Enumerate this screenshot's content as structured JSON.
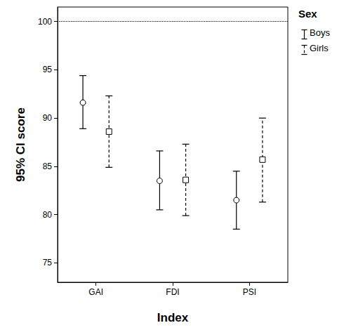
{
  "chart_data": {
    "type": "errorbar",
    "x_label": "Index",
    "y_label": "95% CI score",
    "categories": [
      "GAI",
      "FDI",
      "PSI"
    ],
    "legend_title": "Sex",
    "legend": "upper right",
    "reference_line": 100,
    "ylim": [
      73,
      101.5
    ],
    "yticks": [
      75,
      80,
      85,
      90,
      95,
      100
    ],
    "grid": false,
    "series": [
      {
        "name": "Boys",
        "color": "#000000",
        "marker": "circle",
        "line_style": "solid",
        "values": [
          91.6,
          83.5,
          81.5
        ],
        "lower": [
          88.9,
          80.5,
          78.5
        ],
        "upper": [
          94.4,
          86.6,
          84.5
        ]
      },
      {
        "name": "Girls",
        "color": "#000000",
        "marker": "square",
        "line_style": "dashed",
        "values": [
          88.6,
          83.6,
          85.7
        ],
        "lower": [
          84.9,
          79.9,
          81.3
        ],
        "upper": [
          92.3,
          87.3,
          90.0
        ]
      }
    ]
  }
}
